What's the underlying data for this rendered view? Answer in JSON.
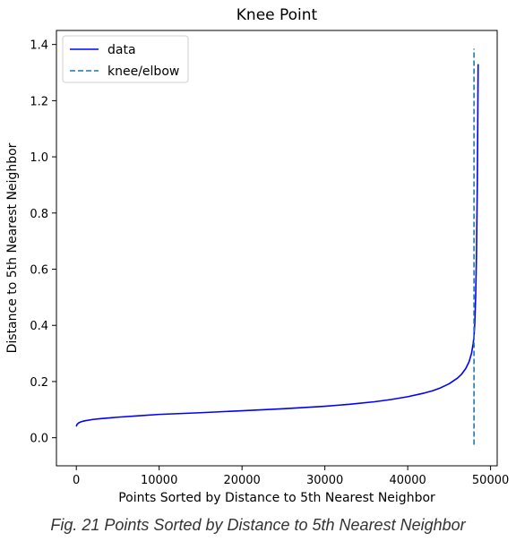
{
  "caption": "Fig. 21 Points Sorted by Distance to 5th Nearest Neighbor",
  "chart_data": {
    "type": "line",
    "title": "Knee Point",
    "xlabel": "Points Sorted by Distance to 5th Nearest Neighbor",
    "ylabel": "Distance to 5th Nearest Neighbor",
    "xlim": [
      -2400,
      50800
    ],
    "ylim": [
      -0.1,
      1.45
    ],
    "xticks": [
      0,
      10000,
      20000,
      30000,
      40000,
      50000
    ],
    "xtick_labels": [
      "0",
      "10000",
      "20000",
      "30000",
      "40000",
      "50000"
    ],
    "yticks": [
      0.0,
      0.2,
      0.4,
      0.6,
      0.8,
      1.0,
      1.2,
      1.4
    ],
    "ytick_labels": [
      "0.0",
      "0.2",
      "0.4",
      "0.6",
      "0.8",
      "1.0",
      "1.2",
      "1.4"
    ],
    "grid": false,
    "legend_position": "top-left",
    "series": [
      {
        "name": "data",
        "color": "#0000ff",
        "style": "solid",
        "x": [
          0,
          100,
          300,
          600,
          1000,
          2000,
          3000,
          5000,
          7500,
          10000,
          15000,
          20000,
          25000,
          30000,
          33000,
          36000,
          38000,
          40000,
          42000,
          43000,
          44000,
          45000,
          46000,
          46500,
          47000,
          47400,
          47700,
          47900,
          48000,
          48100,
          48200,
          48300,
          48400,
          48450,
          48500
        ],
        "y": [
          0.04,
          0.048,
          0.053,
          0.057,
          0.06,
          0.065,
          0.068,
          0.073,
          0.078,
          0.083,
          0.089,
          0.096,
          0.103,
          0.112,
          0.119,
          0.128,
          0.136,
          0.146,
          0.159,
          0.167,
          0.178,
          0.192,
          0.212,
          0.226,
          0.246,
          0.27,
          0.3,
          0.335,
          0.36,
          0.41,
          0.5,
          0.65,
          0.9,
          1.1,
          1.33
        ]
      },
      {
        "name": "knee/elbow",
        "color": "#1f77b4",
        "style": "dashed",
        "x": [
          48000,
          48000
        ],
        "y": [
          -0.025,
          1.385
        ]
      }
    ]
  }
}
